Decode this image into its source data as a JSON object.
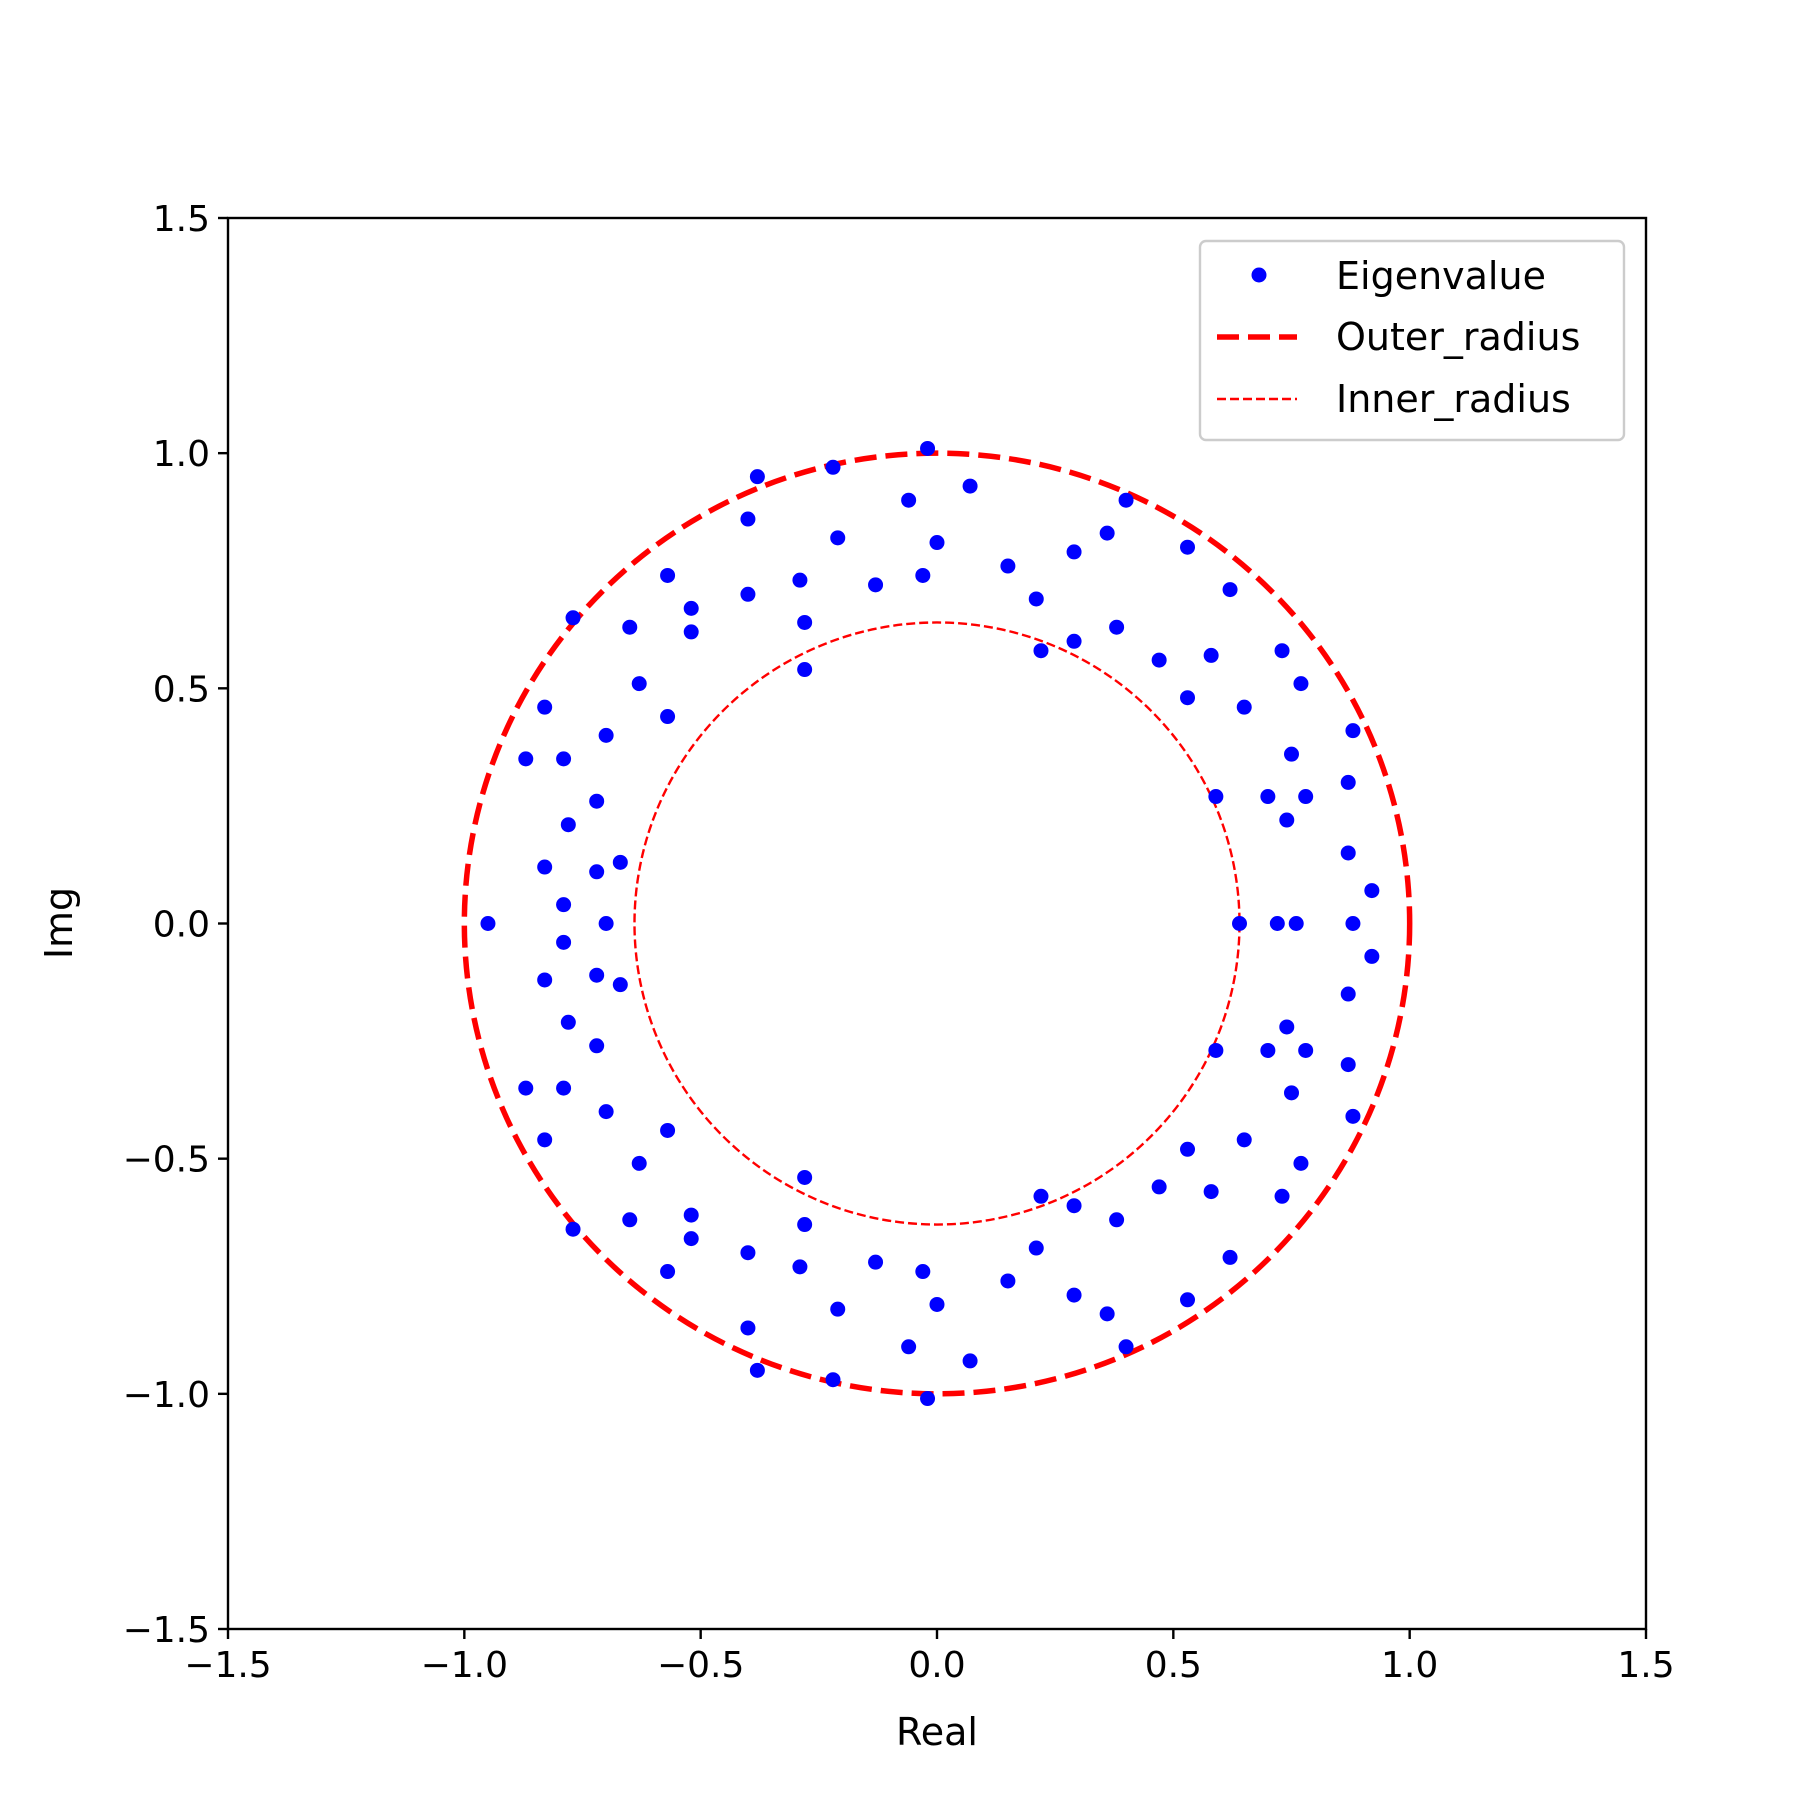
{
  "chart_data": {
    "type": "scatter",
    "xlabel": "Real",
    "ylabel": "Img",
    "xlim": [
      -1.5,
      1.5
    ],
    "ylim": [
      -1.5,
      1.5
    ],
    "x_ticks": [
      -1.5,
      -1.0,
      -0.5,
      0.0,
      0.5,
      1.0,
      1.5
    ],
    "y_ticks": [
      -1.5,
      -1.0,
      -0.5,
      0.0,
      0.5,
      1.0,
      1.5
    ],
    "x_tick_labels": [
      "−1.5",
      "−1.0",
      "−0.5",
      "0.0",
      "0.5",
      "1.0",
      "1.5"
    ],
    "y_tick_labels": [
      "−1.5",
      "−1.0",
      "−0.5",
      "0.0",
      "0.5",
      "1.0",
      "1.5"
    ],
    "grid": false,
    "legend_position": "top-right",
    "series": [
      {
        "name": "Eigenvalue",
        "kind": "points",
        "color": "#0000ff",
        "points": [
          [
            -0.02,
            1.01
          ],
          [
            0.07,
            0.93
          ],
          [
            -0.06,
            0.9
          ],
          [
            -0.22,
            0.97
          ],
          [
            -0.38,
            0.95
          ],
          [
            -0.4,
            0.86
          ],
          [
            0.0,
            0.81
          ],
          [
            -0.21,
            0.82
          ],
          [
            -0.03,
            0.74
          ],
          [
            -0.13,
            0.72
          ],
          [
            -0.29,
            0.73
          ],
          [
            -0.4,
            0.7
          ],
          [
            -0.28,
            0.64
          ],
          [
            -0.52,
            0.67
          ],
          [
            -0.57,
            0.74
          ],
          [
            -0.52,
            0.62
          ],
          [
            -0.65,
            0.63
          ],
          [
            -0.77,
            0.65
          ],
          [
            -0.28,
            0.54
          ],
          [
            -0.63,
            0.51
          ],
          [
            -0.57,
            0.44
          ],
          [
            -0.83,
            0.46
          ],
          [
            -0.7,
            0.4
          ],
          [
            -0.87,
            0.35
          ],
          [
            -0.79,
            0.35
          ],
          [
            -0.72,
            0.26
          ],
          [
            -0.78,
            0.21
          ],
          [
            -0.67,
            0.13
          ],
          [
            -0.72,
            0.11
          ],
          [
            -0.83,
            0.12
          ],
          [
            -0.79,
            0.04
          ],
          [
            -0.95,
            0.0
          ],
          [
            -0.7,
            0.0
          ],
          [
            0.15,
            0.76
          ],
          [
            0.29,
            0.79
          ],
          [
            0.36,
            0.83
          ],
          [
            0.4,
            0.9
          ],
          [
            0.53,
            0.8
          ],
          [
            0.21,
            0.69
          ],
          [
            0.29,
            0.6
          ],
          [
            0.38,
            0.63
          ],
          [
            0.22,
            0.58
          ],
          [
            0.47,
            0.56
          ],
          [
            0.58,
            0.57
          ],
          [
            0.62,
            0.71
          ],
          [
            0.53,
            0.48
          ],
          [
            0.65,
            0.46
          ],
          [
            0.73,
            0.58
          ],
          [
            0.77,
            0.51
          ],
          [
            0.88,
            0.41
          ],
          [
            0.75,
            0.36
          ],
          [
            0.87,
            0.3
          ],
          [
            0.59,
            0.27
          ],
          [
            0.7,
            0.27
          ],
          [
            0.78,
            0.27
          ],
          [
            0.74,
            0.22
          ],
          [
            0.87,
            0.15
          ],
          [
            0.92,
            0.07
          ],
          [
            0.64,
            0.0
          ],
          [
            0.72,
            0.0
          ],
          [
            0.76,
            0.0
          ],
          [
            0.88,
            0.0
          ],
          [
            -0.02,
            -1.01
          ],
          [
            0.07,
            -0.93
          ],
          [
            -0.06,
            -0.9
          ],
          [
            -0.22,
            -0.97
          ],
          [
            -0.38,
            -0.95
          ],
          [
            -0.4,
            -0.86
          ],
          [
            0.0,
            -0.81
          ],
          [
            -0.21,
            -0.82
          ],
          [
            -0.03,
            -0.74
          ],
          [
            -0.13,
            -0.72
          ],
          [
            -0.29,
            -0.73
          ],
          [
            -0.4,
            -0.7
          ],
          [
            -0.28,
            -0.64
          ],
          [
            -0.52,
            -0.67
          ],
          [
            -0.57,
            -0.74
          ],
          [
            -0.52,
            -0.62
          ],
          [
            -0.65,
            -0.63
          ],
          [
            -0.77,
            -0.65
          ],
          [
            -0.28,
            -0.54
          ],
          [
            -0.63,
            -0.51
          ],
          [
            -0.57,
            -0.44
          ],
          [
            -0.83,
            -0.46
          ],
          [
            -0.7,
            -0.4
          ],
          [
            -0.87,
            -0.35
          ],
          [
            -0.79,
            -0.35
          ],
          [
            -0.72,
            -0.26
          ],
          [
            -0.78,
            -0.21
          ],
          [
            -0.67,
            -0.13
          ],
          [
            -0.72,
            -0.11
          ],
          [
            -0.83,
            -0.12
          ],
          [
            -0.79,
            -0.04
          ],
          [
            0.15,
            -0.76
          ],
          [
            0.29,
            -0.79
          ],
          [
            0.36,
            -0.83
          ],
          [
            0.4,
            -0.9
          ],
          [
            0.53,
            -0.8
          ],
          [
            0.21,
            -0.69
          ],
          [
            0.29,
            -0.6
          ],
          [
            0.38,
            -0.63
          ],
          [
            0.22,
            -0.58
          ],
          [
            0.47,
            -0.56
          ],
          [
            0.58,
            -0.57
          ],
          [
            0.62,
            -0.71
          ],
          [
            0.53,
            -0.48
          ],
          [
            0.65,
            -0.46
          ],
          [
            0.73,
            -0.58
          ],
          [
            0.77,
            -0.51
          ],
          [
            0.88,
            -0.41
          ],
          [
            0.75,
            -0.36
          ],
          [
            0.87,
            -0.3
          ],
          [
            0.59,
            -0.27
          ],
          [
            0.7,
            -0.27
          ],
          [
            0.78,
            -0.27
          ],
          [
            0.74,
            -0.22
          ],
          [
            0.87,
            -0.15
          ],
          [
            0.92,
            -0.07
          ]
        ]
      },
      {
        "name": "Outer_radius",
        "kind": "circle",
        "radius": 1.0,
        "color": "#ff0000",
        "style": "dashed-thick"
      },
      {
        "name": "Inner_radius",
        "kind": "circle",
        "radius": 0.64,
        "color": "#ff0000",
        "style": "dashed-thin"
      }
    ]
  }
}
